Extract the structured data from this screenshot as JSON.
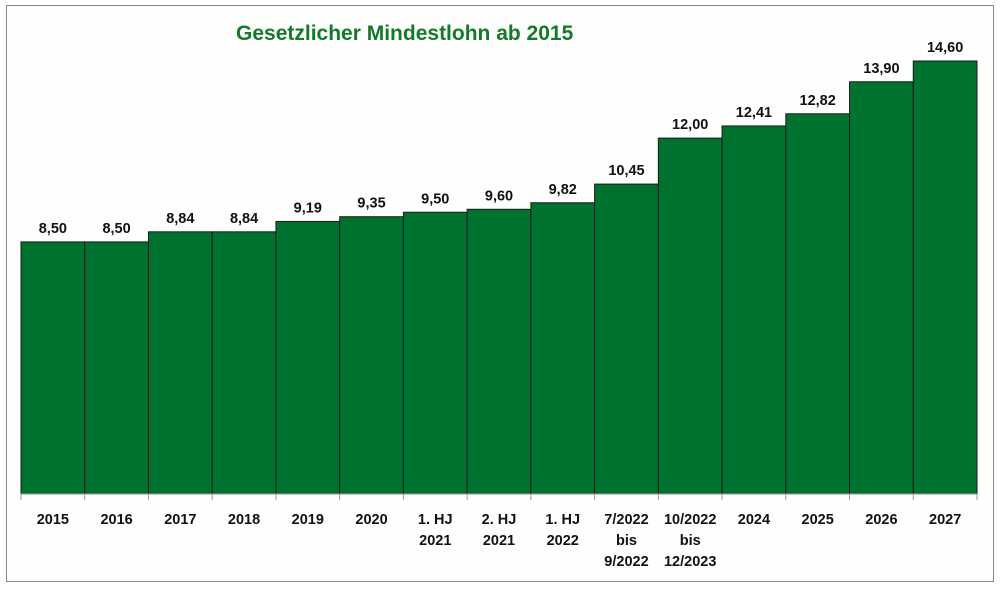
{
  "chart_data": {
    "type": "bar",
    "title": "Gesetzlicher Mindestlohn ab 2015",
    "xlabel": "",
    "ylabel": "",
    "ylim": [
      0,
      14.6
    ],
    "grid": false,
    "bar_color": "#00722f",
    "title_color": "#137a2a",
    "categories": [
      [
        "2015"
      ],
      [
        "2016"
      ],
      [
        "2017"
      ],
      [
        "2018"
      ],
      [
        "2019"
      ],
      [
        "2020"
      ],
      [
        "1. HJ",
        "2021"
      ],
      [
        "2. HJ",
        "2021"
      ],
      [
        "1. HJ",
        "2022"
      ],
      [
        "7/2022",
        "bis",
        "9/2022"
      ],
      [
        "10/2022",
        "bis",
        "12/2023"
      ],
      [
        "2024"
      ],
      [
        "2025"
      ],
      [
        "2026"
      ],
      [
        "2027"
      ]
    ],
    "values": [
      8.5,
      8.5,
      8.84,
      8.84,
      9.19,
      9.35,
      9.5,
      9.6,
      9.82,
      10.45,
      12.0,
      12.41,
      12.82,
      13.9,
      14.6
    ],
    "value_labels": [
      "8,50",
      "8,50",
      "8,84",
      "8,84",
      "9,19",
      "9,35",
      "9,50",
      "9,60",
      "9,82",
      "10,45",
      "12,00",
      "12,41",
      "12,82",
      "13,90",
      "14,60"
    ]
  }
}
